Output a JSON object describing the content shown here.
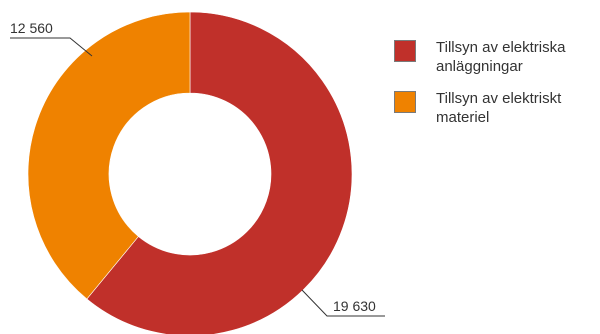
{
  "chart_data": {
    "type": "pie",
    "donut": true,
    "series": [
      {
        "name": "Tillsyn av elektriska anläggningar",
        "value": 19630,
        "label": "19 630",
        "color": "#c0302a"
      },
      {
        "name": "Tillsyn av elektriskt materiel",
        "value": 12560,
        "label": "12 560",
        "color": "#ef8200"
      }
    ],
    "legend_position": "right"
  }
}
